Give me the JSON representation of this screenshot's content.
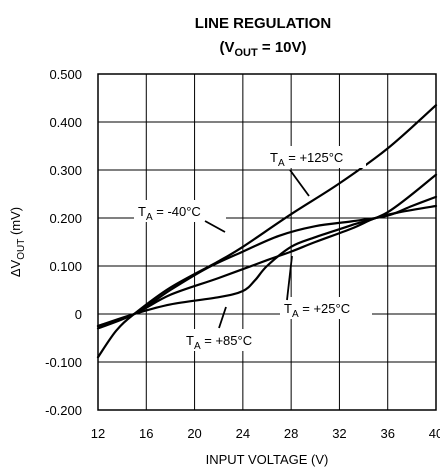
{
  "chart_data": {
    "type": "line",
    "title": "LINE REGULATION",
    "subtitle": {
      "pre": "(V",
      "sub": "OUT",
      "post": " = 10V)"
    },
    "xlabel": "INPUT VOLTAGE (V)",
    "ylabel": {
      "pre": "ΔV",
      "sub": "OUT",
      "post": " (mV)"
    },
    "xlim": [
      12,
      40
    ],
    "ylim": [
      -0.2,
      0.5
    ],
    "x_ticks": [
      "12",
      "16",
      "20",
      "24",
      "28",
      "32",
      "36",
      "40"
    ],
    "y_ticks": [
      "0.500",
      "0.400",
      "0.300",
      "0.200",
      "0.100",
      "0",
      "-0.100",
      "-0.200"
    ],
    "y_tick_values": [
      0.5,
      0.4,
      0.3,
      0.2,
      0.1,
      0,
      -0.1,
      -0.2
    ],
    "grid": true,
    "series": [
      {
        "name": "+125°C",
        "x": [
          12,
          13.5,
          15,
          18,
          22,
          24,
          28,
          32,
          36,
          40
        ],
        "y": [
          -0.09,
          -0.035,
          0.0,
          0.055,
          0.11,
          0.14,
          0.208,
          0.272,
          0.345,
          0.435
        ]
      },
      {
        "name": "-40°C",
        "x": [
          12,
          15,
          18,
          22,
          26,
          28,
          30,
          33,
          35,
          37,
          40
        ],
        "y": [
          -0.025,
          0.0,
          0.04,
          0.075,
          0.112,
          0.13,
          0.15,
          0.178,
          0.2,
          0.212,
          0.225
        ]
      },
      {
        "name": "+25°C",
        "x": [
          12,
          15,
          18,
          21,
          24,
          27,
          30,
          33,
          36,
          38,
          40
        ],
        "y": [
          -0.03,
          0.0,
          0.05,
          0.095,
          0.13,
          0.163,
          0.183,
          0.193,
          0.205,
          0.225,
          0.244
        ]
      },
      {
        "name": "+85°C",
        "x": [
          12,
          15,
          18,
          22,
          24,
          25,
          26,
          28,
          30,
          33,
          36,
          40
        ],
        "y": [
          -0.025,
          0.0,
          0.02,
          0.035,
          0.048,
          0.07,
          0.1,
          0.14,
          0.16,
          0.185,
          0.212,
          0.29
        ]
      }
    ],
    "annotations": [
      {
        "pre": "T",
        "sub": "A",
        "post": " = +125°C"
      },
      {
        "pre": "T",
        "sub": "A",
        "post": " = -40°C"
      },
      {
        "pre": "T",
        "sub": "A",
        "post": " = +25°C"
      },
      {
        "pre": "T",
        "sub": "A",
        "post": " = +85°C"
      }
    ]
  }
}
